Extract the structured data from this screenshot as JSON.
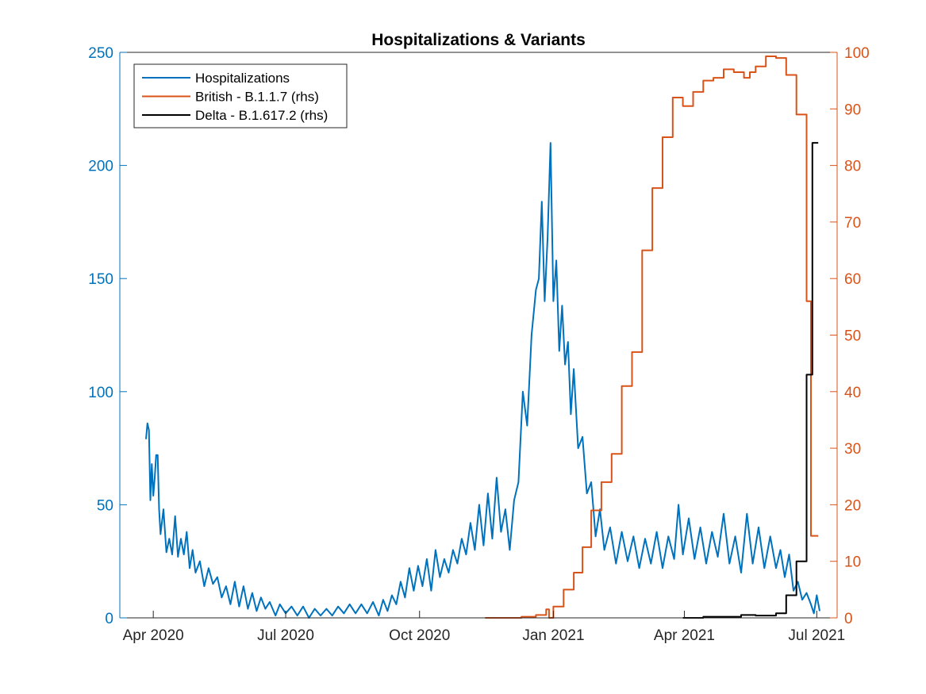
{
  "chart_data": {
    "type": "line",
    "title": "Hospitalizations & Variants",
    "xlabel": "",
    "ylabel": "",
    "y2label": "",
    "x_range": [
      "2020-03-09",
      "2021-07-15"
    ],
    "x_ticks": [
      {
        "date": "2020-04-01",
        "label": "Apr 2020"
      },
      {
        "date": "2020-07-01",
        "label": "Jul 2020"
      },
      {
        "date": "2020-10-01",
        "label": "Oct 2020"
      },
      {
        "date": "2021-01-01",
        "label": "Jan 2021"
      },
      {
        "date": "2021-04-01",
        "label": "Apr 2021"
      },
      {
        "date": "2021-07-01",
        "label": "Jul 2021"
      }
    ],
    "ylim": [
      0,
      250
    ],
    "y_ticks": [
      "0",
      "50",
      "100",
      "150",
      "200",
      "250"
    ],
    "y2lim": [
      0,
      100
    ],
    "y2_ticks": [
      "0",
      "10",
      "20",
      "30",
      "40",
      "50",
      "60",
      "70",
      "80",
      "90",
      "100"
    ],
    "legend_position": "top-left",
    "grid": false,
    "colors": {
      "hospitalizations": "#0072BD",
      "british": "#D95319",
      "delta": "#000000",
      "left_axis": "#0072BD",
      "right_axis": "#D95319"
    },
    "series": [
      {
        "name": "Hospitalizations",
        "axis": "left",
        "step": false,
        "points": [
          [
            "2020-03-27",
            79
          ],
          [
            "2020-03-28",
            86
          ],
          [
            "2020-03-29",
            83
          ],
          [
            "2020-03-30",
            52
          ],
          [
            "2020-03-31",
            68
          ],
          [
            "2020-04-01",
            54
          ],
          [
            "2020-04-02",
            62
          ],
          [
            "2020-04-03",
            72
          ],
          [
            "2020-04-04",
            72
          ],
          [
            "2020-04-05",
            48
          ],
          [
            "2020-04-06",
            37
          ],
          [
            "2020-04-08",
            48
          ],
          [
            "2020-04-10",
            29
          ],
          [
            "2020-04-12",
            35
          ],
          [
            "2020-04-14",
            28
          ],
          [
            "2020-04-16",
            45
          ],
          [
            "2020-04-18",
            27
          ],
          [
            "2020-04-20",
            35
          ],
          [
            "2020-04-22",
            28
          ],
          [
            "2020-04-24",
            38
          ],
          [
            "2020-04-26",
            22
          ],
          [
            "2020-04-28",
            30
          ],
          [
            "2020-04-30",
            20
          ],
          [
            "2020-05-03",
            25
          ],
          [
            "2020-05-06",
            14
          ],
          [
            "2020-05-09",
            22
          ],
          [
            "2020-05-12",
            15
          ],
          [
            "2020-05-15",
            18
          ],
          [
            "2020-05-18",
            9
          ],
          [
            "2020-05-21",
            14
          ],
          [
            "2020-05-24",
            6
          ],
          [
            "2020-05-27",
            16
          ],
          [
            "2020-05-30",
            5
          ],
          [
            "2020-06-02",
            14
          ],
          [
            "2020-06-05",
            4
          ],
          [
            "2020-06-08",
            11
          ],
          [
            "2020-06-11",
            3
          ],
          [
            "2020-06-14",
            9
          ],
          [
            "2020-06-17",
            4
          ],
          [
            "2020-06-20",
            7
          ],
          [
            "2020-06-24",
            1
          ],
          [
            "2020-06-27",
            6
          ],
          [
            "2020-07-01",
            2
          ],
          [
            "2020-07-05",
            5
          ],
          [
            "2020-07-09",
            1
          ],
          [
            "2020-07-13",
            5
          ],
          [
            "2020-07-17",
            0
          ],
          [
            "2020-07-21",
            4
          ],
          [
            "2020-07-25",
            1
          ],
          [
            "2020-07-29",
            4
          ],
          [
            "2020-08-02",
            1
          ],
          [
            "2020-08-06",
            5
          ],
          [
            "2020-08-10",
            2
          ],
          [
            "2020-08-14",
            6
          ],
          [
            "2020-08-18",
            2
          ],
          [
            "2020-08-22",
            6
          ],
          [
            "2020-08-26",
            2
          ],
          [
            "2020-08-30",
            7
          ],
          [
            "2020-09-03",
            1
          ],
          [
            "2020-09-06",
            8
          ],
          [
            "2020-09-09",
            3
          ],
          [
            "2020-09-12",
            10
          ],
          [
            "2020-09-15",
            6
          ],
          [
            "2020-09-18",
            16
          ],
          [
            "2020-09-21",
            9
          ],
          [
            "2020-09-24",
            22
          ],
          [
            "2020-09-27",
            12
          ],
          [
            "2020-09-30",
            23
          ],
          [
            "2020-10-03",
            14
          ],
          [
            "2020-10-06",
            26
          ],
          [
            "2020-10-09",
            12
          ],
          [
            "2020-10-12",
            30
          ],
          [
            "2020-10-15",
            18
          ],
          [
            "2020-10-18",
            26
          ],
          [
            "2020-10-21",
            20
          ],
          [
            "2020-10-24",
            30
          ],
          [
            "2020-10-27",
            24
          ],
          [
            "2020-10-30",
            35
          ],
          [
            "2020-11-02",
            28
          ],
          [
            "2020-11-05",
            42
          ],
          [
            "2020-11-08",
            30
          ],
          [
            "2020-11-11",
            50
          ],
          [
            "2020-11-14",
            32
          ],
          [
            "2020-11-17",
            55
          ],
          [
            "2020-11-20",
            35
          ],
          [
            "2020-11-23",
            62
          ],
          [
            "2020-11-26",
            38
          ],
          [
            "2020-11-29",
            48
          ],
          [
            "2020-12-02",
            30
          ],
          [
            "2020-12-05",
            52
          ],
          [
            "2020-12-08",
            60
          ],
          [
            "2020-12-11",
            100
          ],
          [
            "2020-12-14",
            85
          ],
          [
            "2020-12-17",
            125
          ],
          [
            "2020-12-20",
            145
          ],
          [
            "2020-12-22",
            150
          ],
          [
            "2020-12-24",
            184
          ],
          [
            "2020-12-26",
            140
          ],
          [
            "2020-12-28",
            168
          ],
          [
            "2020-12-30",
            210
          ],
          [
            "2021-01-01",
            140
          ],
          [
            "2021-01-03",
            158
          ],
          [
            "2021-01-05",
            118
          ],
          [
            "2021-01-07",
            138
          ],
          [
            "2021-01-09",
            112
          ],
          [
            "2021-01-11",
            122
          ],
          [
            "2021-01-13",
            90
          ],
          [
            "2021-01-15",
            110
          ],
          [
            "2021-01-18",
            75
          ],
          [
            "2021-01-21",
            80
          ],
          [
            "2021-01-24",
            55
          ],
          [
            "2021-01-27",
            60
          ],
          [
            "2021-01-30",
            36
          ],
          [
            "2021-02-02",
            48
          ],
          [
            "2021-02-05",
            30
          ],
          [
            "2021-02-09",
            40
          ],
          [
            "2021-02-13",
            24
          ],
          [
            "2021-02-17",
            38
          ],
          [
            "2021-02-21",
            25
          ],
          [
            "2021-02-25",
            36
          ],
          [
            "2021-03-01",
            22
          ],
          [
            "2021-03-05",
            35
          ],
          [
            "2021-03-09",
            24
          ],
          [
            "2021-03-13",
            38
          ],
          [
            "2021-03-17",
            22
          ],
          [
            "2021-03-21",
            36
          ],
          [
            "2021-03-25",
            26
          ],
          [
            "2021-03-28",
            50
          ],
          [
            "2021-03-31",
            28
          ],
          [
            "2021-04-04",
            44
          ],
          [
            "2021-04-08",
            26
          ],
          [
            "2021-04-12",
            40
          ],
          [
            "2021-04-16",
            24
          ],
          [
            "2021-04-20",
            38
          ],
          [
            "2021-04-24",
            27
          ],
          [
            "2021-04-28",
            46
          ],
          [
            "2021-05-02",
            24
          ],
          [
            "2021-05-06",
            36
          ],
          [
            "2021-05-10",
            20
          ],
          [
            "2021-05-14",
            46
          ],
          [
            "2021-05-18",
            24
          ],
          [
            "2021-05-22",
            40
          ],
          [
            "2021-05-26",
            22
          ],
          [
            "2021-05-30",
            36
          ],
          [
            "2021-06-03",
            22
          ],
          [
            "2021-06-06",
            30
          ],
          [
            "2021-06-09",
            18
          ],
          [
            "2021-06-12",
            28
          ],
          [
            "2021-06-15",
            12
          ],
          [
            "2021-06-18",
            16
          ],
          [
            "2021-06-21",
            8
          ],
          [
            "2021-06-24",
            11
          ],
          [
            "2021-06-27",
            6
          ],
          [
            "2021-06-29",
            2
          ],
          [
            "2021-07-01",
            10
          ],
          [
            "2021-07-03",
            3
          ]
        ]
      },
      {
        "name": "British - B.1.1.7 (rhs)",
        "axis": "right",
        "step": true,
        "points": [
          [
            "2020-11-15",
            0
          ],
          [
            "2020-12-10",
            0.2
          ],
          [
            "2020-12-20",
            0.5
          ],
          [
            "2020-12-27",
            1.5
          ],
          [
            "2020-12-29",
            0
          ],
          [
            "2021-01-01",
            2
          ],
          [
            "2021-01-08",
            5
          ],
          [
            "2021-01-15",
            8
          ],
          [
            "2021-01-21",
            12.5
          ],
          [
            "2021-01-27",
            19
          ],
          [
            "2021-02-03",
            24
          ],
          [
            "2021-02-10",
            29
          ],
          [
            "2021-02-17",
            41
          ],
          [
            "2021-02-24",
            47
          ],
          [
            "2021-03-03",
            65
          ],
          [
            "2021-03-10",
            76
          ],
          [
            "2021-03-17",
            85
          ],
          [
            "2021-03-24",
            92
          ],
          [
            "2021-03-31",
            90.5
          ],
          [
            "2021-04-07",
            93
          ],
          [
            "2021-04-14",
            95
          ],
          [
            "2021-04-21",
            95.5
          ],
          [
            "2021-04-28",
            97
          ],
          [
            "2021-05-05",
            96.5
          ],
          [
            "2021-05-12",
            95.5
          ],
          [
            "2021-05-16",
            96.5
          ],
          [
            "2021-05-20",
            97.5
          ],
          [
            "2021-05-27",
            99.3
          ],
          [
            "2021-06-03",
            99
          ],
          [
            "2021-06-10",
            96
          ],
          [
            "2021-06-17",
            89
          ],
          [
            "2021-06-24",
            56
          ],
          [
            "2021-06-27",
            14.5
          ],
          [
            "2021-07-02",
            14.5
          ]
        ]
      },
      {
        "name": "Delta - B.1.617.2 (rhs)",
        "axis": "right",
        "step": true,
        "points": [
          [
            "2021-03-31",
            0
          ],
          [
            "2021-04-14",
            0.2
          ],
          [
            "2021-05-10",
            0.5
          ],
          [
            "2021-05-20",
            0.4
          ],
          [
            "2021-06-03",
            0.8
          ],
          [
            "2021-06-10",
            4
          ],
          [
            "2021-06-17",
            10
          ],
          [
            "2021-06-24",
            43
          ],
          [
            "2021-06-28",
            84
          ],
          [
            "2021-07-02",
            84
          ]
        ]
      }
    ]
  }
}
